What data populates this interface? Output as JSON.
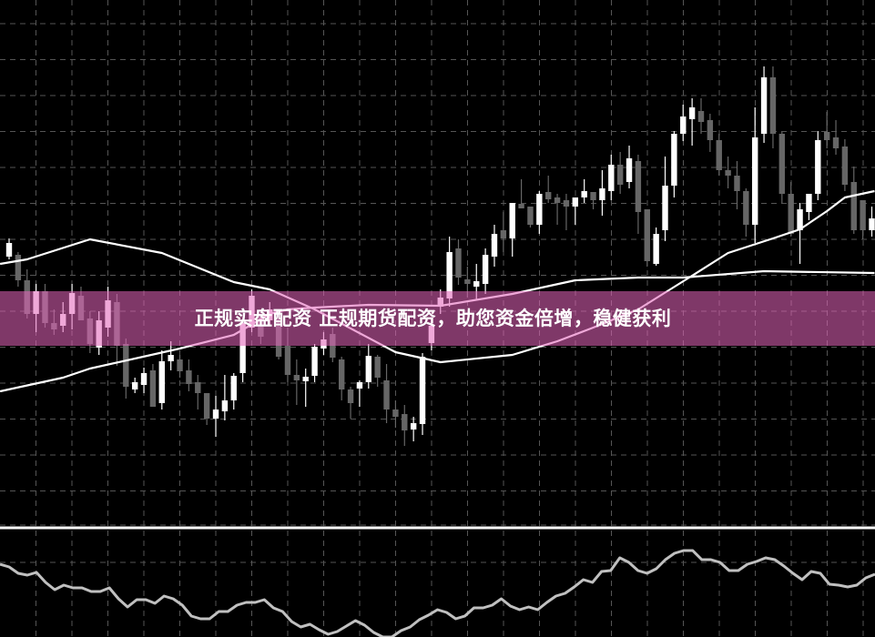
{
  "banner": {
    "text": "正规实盘配资 正规期货配资，助您资金倍增，稳健获利",
    "color": "#e364ba"
  },
  "colors": {
    "background": "#000000",
    "bull": "#ffffff",
    "bear": "#666666",
    "grid": "#555555",
    "ma": "#ffffff",
    "oscillator": "#c0c0c0",
    "level_line": "#ffffff"
  },
  "chart_data": [
    {
      "type": "candlestick",
      "grid": true,
      "candles": [
        [
          31.8,
          33.8,
          31.5,
          33.3
        ],
        [
          32.0,
          32.3,
          28.5,
          29.2
        ],
        [
          29.2,
          30.4,
          25.0,
          25.5
        ],
        [
          25.5,
          28.8,
          23.5,
          28.0
        ],
        [
          28.0,
          28.8,
          24.0,
          24.5
        ],
        [
          24.5,
          26.0,
          23.2,
          23.8
        ],
        [
          24.2,
          26.8,
          23.5,
          25.5
        ],
        [
          25.5,
          28.8,
          23.8,
          27.8
        ],
        [
          27.5,
          28.5,
          24.8,
          24.8
        ],
        [
          25.0,
          25.8,
          21.2,
          22.2
        ],
        [
          21.8,
          25.8,
          21.0,
          24.8
        ],
        [
          24.0,
          28.5,
          23.0,
          27.0
        ],
        [
          26.8,
          27.7,
          19.8,
          22.0
        ],
        [
          22.2,
          22.8,
          16.2,
          17.5
        ],
        [
          17.2,
          18.5,
          16.8,
          18.0
        ],
        [
          17.7,
          19.6,
          16.8,
          19.0
        ],
        [
          19.3,
          20.0,
          15.3,
          15.3
        ],
        [
          15.7,
          21.5,
          15.0,
          20.3
        ],
        [
          20.3,
          22.5,
          19.3,
          21.0
        ],
        [
          20.5,
          21.0,
          18.5,
          19.2
        ],
        [
          19.3,
          20.5,
          17.0,
          17.8
        ],
        [
          18.0,
          18.8,
          15.0,
          16.8
        ],
        [
          16.8,
          16.8,
          13.3,
          14.0
        ],
        [
          14.0,
          16.5,
          12.0,
          15.0
        ],
        [
          14.8,
          18.8,
          13.8,
          16.0
        ],
        [
          16.0,
          19.0,
          15.0,
          18.7
        ],
        [
          19.0,
          24.8,
          18.0,
          24.5
        ],
        [
          24.0,
          28.2,
          23.5,
          27.5
        ],
        [
          25.5,
          26.0,
          22.2,
          23.0
        ],
        [
          24.8,
          26.8,
          24.2,
          26.0
        ],
        [
          25.5,
          26.0,
          20.5,
          20.8
        ],
        [
          22.0,
          24.0,
          18.0,
          18.8
        ],
        [
          18.8,
          20.5,
          15.5,
          18.2
        ],
        [
          18.1,
          19.5,
          15.3,
          18.6
        ],
        [
          18.7,
          22.2,
          18.0,
          21.9
        ],
        [
          21.7,
          23.5,
          21.0,
          22.7
        ],
        [
          23.3,
          24.0,
          20.2,
          20.7
        ],
        [
          20.5,
          20.8,
          16.0,
          17.2
        ],
        [
          17.2,
          17.5,
          14.0,
          15.7
        ],
        [
          17.3,
          18.2,
          15.3,
          18.0
        ],
        [
          18.0,
          22.2,
          17.3,
          20.9
        ],
        [
          20.8,
          21.0,
          17.5,
          18.5
        ],
        [
          18.2,
          20.0,
          13.5,
          15.0
        ],
        [
          15.0,
          16.0,
          13.0,
          14.2
        ],
        [
          14.5,
          15.5,
          11.0,
          12.7
        ],
        [
          12.8,
          14.2,
          11.5,
          13.5
        ],
        [
          13.4,
          21.2,
          12.2,
          20.8
        ],
        [
          22.3,
          25.0,
          21.5,
          24.2
        ],
        [
          26.3,
          28.2,
          25.5,
          27.3
        ],
        [
          27.2,
          34.0,
          26.3,
          32.3
        ],
        [
          32.7,
          33.7,
          28.7,
          29.5
        ],
        [
          29.3,
          30.7,
          27.3,
          28.8
        ],
        [
          28.5,
          31.0,
          27.0,
          29.1
        ],
        [
          28.8,
          32.7,
          27.7,
          32.0
        ],
        [
          31.8,
          35.3,
          30.7,
          34.3
        ],
        [
          34.7,
          36.7,
          32.3,
          33.8
        ],
        [
          33.8,
          37.7,
          31.8,
          37.7
        ],
        [
          37.6,
          40.3,
          37.1,
          37.1
        ],
        [
          37.3,
          37.3,
          35.0,
          35.3
        ],
        [
          35.3,
          39.0,
          34.3,
          38.7
        ],
        [
          38.9,
          40.7,
          37.7,
          38.1
        ],
        [
          38.3,
          38.7,
          35.3,
          37.7
        ],
        [
          38.0,
          38.7,
          34.7,
          37.3
        ],
        [
          37.3,
          38.3,
          35.3,
          38.3
        ],
        [
          38.3,
          40.3,
          37.7,
          39.0
        ],
        [
          38.9,
          38.9,
          37.0,
          38.0
        ],
        [
          38.0,
          41.3,
          36.3,
          39.3
        ],
        [
          39.0,
          43.0,
          38.0,
          41.9
        ],
        [
          41.9,
          43.3,
          38.7,
          39.7
        ],
        [
          40.0,
          44.0,
          39.3,
          42.6
        ],
        [
          42.3,
          43.0,
          34.3,
          36.7
        ],
        [
          37.0,
          37.0,
          30.7,
          31.3
        ],
        [
          31.0,
          35.0,
          30.8,
          34.3
        ],
        [
          34.7,
          42.8,
          33.5,
          39.6
        ],
        [
          39.6,
          45.6,
          38.3,
          45.3
        ],
        [
          45.3,
          48.5,
          44.5,
          47.2
        ],
        [
          46.9,
          49.2,
          44.0,
          48.2
        ],
        [
          47.8,
          49.2,
          45.3,
          46.6
        ],
        [
          46.8,
          47.5,
          43.3,
          44.6
        ],
        [
          44.6,
          45.3,
          40.7,
          41.3
        ],
        [
          41.3,
          42.8,
          39.3,
          40.7
        ],
        [
          40.7,
          42.3,
          37.0,
          39.0
        ],
        [
          39.0,
          39.3,
          34.0,
          35.3
        ],
        [
          35.3,
          48.2,
          33.3,
          44.9
        ],
        [
          45.3,
          52.7,
          44.3,
          51.5
        ],
        [
          51.5,
          52.7,
          43.7,
          45.3
        ],
        [
          45.3,
          45.5,
          37.7,
          38.7
        ],
        [
          38.7,
          40.0,
          34.0,
          34.3
        ],
        [
          34.7,
          37.7,
          31.0,
          37.0
        ],
        [
          36.7,
          38.7,
          35.8,
          38.7
        ],
        [
          38.7,
          45.6,
          38.0,
          44.6
        ],
        [
          45.5,
          47.7,
          43.7,
          44.6
        ],
        [
          44.9,
          46.8,
          43.0,
          43.7
        ],
        [
          43.9,
          44.7,
          39.0,
          39.7
        ],
        [
          40.0,
          41.7,
          34.3,
          34.7
        ],
        [
          38.0,
          38.0,
          33.7,
          34.7
        ],
        [
          34.7,
          37.3,
          34.0,
          36.0
        ]
      ],
      "moving_averages": [
        {
          "points": [
            [
              -1,
              31.0
            ],
            [
              2,
              31.5
            ],
            [
              9,
              33.7
            ],
            [
              17,
              32.2
            ],
            [
              25,
              29.0
            ],
            [
              29,
              28.2
            ],
            [
              34,
              26.0
            ],
            [
              43,
              21.3
            ],
            [
              48,
              20.2
            ],
            [
              56,
              21.0
            ],
            [
              61,
              22.5
            ],
            [
              65,
              24.0
            ],
            [
              70,
              26.0
            ],
            [
              76,
              29.7
            ],
            [
              80,
              32.2
            ],
            [
              85,
              33.8
            ],
            [
              88,
              34.8
            ],
            [
              91,
              36.8
            ],
            [
              93,
              38.3
            ],
            [
              96.3,
              39.0
            ]
          ]
        },
        {
          "points": [
            [
              -1,
              17.0
            ],
            [
              6,
              18.5
            ],
            [
              9,
              19.5
            ],
            [
              19,
              21.7
            ],
            [
              25,
              23.2
            ],
            [
              29,
              25.5
            ],
            [
              31,
              26.0
            ],
            [
              34,
              26.2
            ],
            [
              40,
              26.5
            ],
            [
              48,
              26.4
            ],
            [
              56,
              27.7
            ],
            [
              63,
              29.2
            ],
            [
              70,
              29.5
            ],
            [
              75,
              29.5
            ],
            [
              84,
              30.2
            ],
            [
              96.3,
              30.0
            ]
          ]
        }
      ]
    },
    {
      "type": "line",
      "grid": true,
      "level": 12.0,
      "values": [
        8.0,
        7.7,
        7.0,
        6.8,
        7.1,
        6.0,
        5.2,
        5.7,
        5.4,
        5.4,
        5.0,
        5.0,
        5.4,
        4.2,
        3.3,
        4.1,
        4.1,
        3.7,
        4.5,
        4.2,
        3.5,
        2.3,
        2.0,
        2.0,
        2.8,
        2.8,
        3.5,
        3.8,
        3.8,
        4.1,
        3.2,
        2.8,
        1.7,
        1.1,
        1.4,
        0.8,
        0.3,
        0.6,
        1.2,
        1.8,
        1.3,
        0.5,
        0.0,
        0.0,
        0.7,
        1.1,
        1.9,
        2.4,
        3.0,
        2.7,
        2.0,
        2.3,
        3.2,
        3.2,
        3.5,
        4.2,
        3.4,
        3.0,
        3.3,
        3.0,
        3.8,
        4.5,
        4.8,
        5.5,
        6.3,
        6.0,
        7.2,
        7.3,
        8.7,
        8.2,
        7.3,
        7.0,
        7.5,
        8.5,
        9.2,
        9.5,
        9.5,
        8.5,
        8.5,
        8.2,
        7.3,
        7.3,
        8.0,
        8.3,
        8.7,
        8.5,
        7.8,
        7.0,
        6.3,
        7.2,
        7.0,
        5.8,
        5.7,
        5.5,
        5.7,
        6.5,
        6.9
      ]
    }
  ]
}
